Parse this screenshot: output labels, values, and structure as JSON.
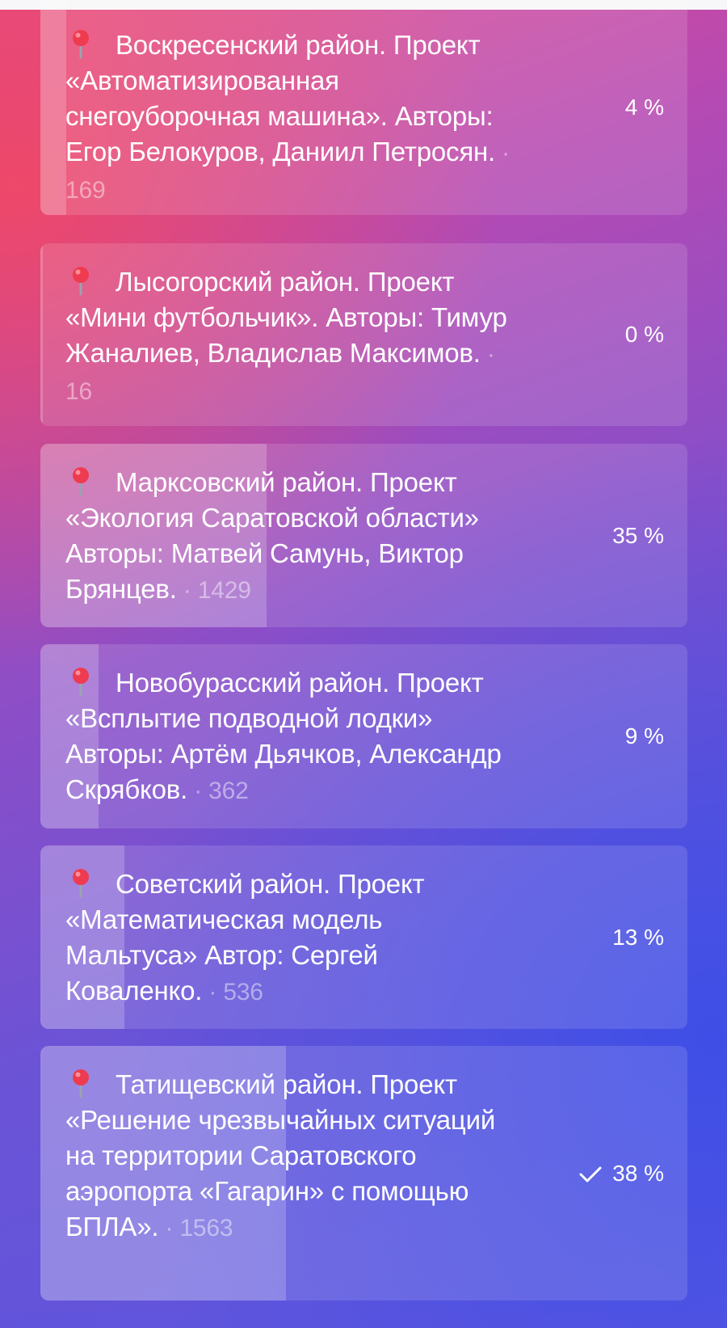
{
  "poll": {
    "options": [
      {
        "text": "Воскресенский район. Проект «Автоматизированная снегоуборочная машина». Авторы: Егор Белокуров, Даниил Петросян.",
        "votes": "169",
        "percent_label": "4 %",
        "percent": 4,
        "selected": false
      },
      {
        "text": "Лысогорский район. Проект «Мини футбольчик». Авторы: Тимур Жаналиев, Владислав Максимов.",
        "votes": "16",
        "percent_label": "0 %",
        "percent": 0,
        "selected": false
      },
      {
        "text": "Марксовский район. Проект «Экология Саратовской области» Авторы: Матвей Самунь, Виктор Брянцев.",
        "votes": "1429",
        "percent_label": "35 %",
        "percent": 35,
        "selected": false
      },
      {
        "text": "Новобурасский район. Проект «Всплытие подводной лодки» Авторы: Артём Дьячков, Александр Скрябков.",
        "votes": "362",
        "percent_label": "9 %",
        "percent": 9,
        "selected": false
      },
      {
        "text": "Советский район. Проект «Математическая модель Мальтуса» Автор: Сергей Коваленко.",
        "votes": "536",
        "percent_label": "13 %",
        "percent": 13,
        "selected": false
      },
      {
        "text": "Татищевский район. Проект «Решение чрезвычайных ситуаций на территории Саратовского аэропорта «Гагарин» с помощью БПЛА».",
        "votes": "1563",
        "percent_label": "38 %",
        "percent": 38,
        "selected": true
      }
    ],
    "vote_separator": " · ",
    "icons": {
      "pin": "round-pushpin-icon",
      "check": "checkmark-icon"
    },
    "colors": {
      "pin": "#ef3b4f",
      "text": "#ffffff"
    }
  }
}
